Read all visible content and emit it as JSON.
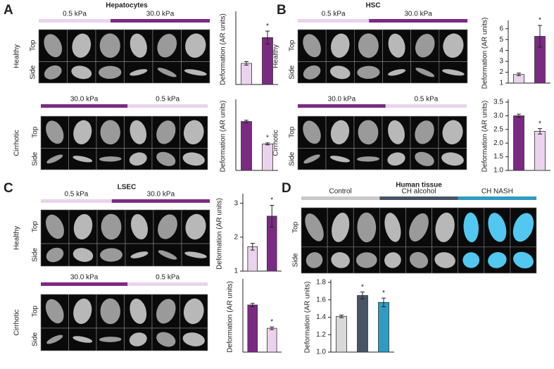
{
  "panels": [
    {
      "letter": "A",
      "title": "Hepatocytes",
      "conditions": [
        {
          "name": "Healthy",
          "groups": [
            {
              "label": "0.5 kPa",
              "color": "#ead3ec"
            },
            {
              "label": "30.0 kPa",
              "color": "#7b2a83"
            }
          ],
          "rows": [
            "Top",
            "Side"
          ]
        },
        {
          "name": "Cirrhotic",
          "groups": [
            {
              "label": "30.0 kPa",
              "color": "#7b2a83"
            },
            {
              "label": "0.5 kPa",
              "color": "#ead3ec"
            }
          ],
          "rows": [
            "Top",
            "Side"
          ]
        }
      ]
    },
    {
      "letter": "B",
      "title": "HSC",
      "conditions": [
        {
          "name": "Healthy",
          "groups": [
            {
              "label": "0.5 kPa",
              "color": "#ead3ec"
            },
            {
              "label": "30.0 kPa",
              "color": "#7b2a83"
            }
          ],
          "rows": [
            "Top",
            "Side"
          ]
        },
        {
          "name": "Cirrhotic",
          "groups": [
            {
              "label": "30.0 kPa",
              "color": "#7b2a83"
            },
            {
              "label": "0.5 kPa",
              "color": "#ead3ec"
            }
          ],
          "rows": [
            "Top",
            "Side"
          ]
        }
      ]
    },
    {
      "letter": "C",
      "title": "LSEC",
      "conditions": [
        {
          "name": "Healthy",
          "groups": [
            {
              "label": "0.5 kPa",
              "color": "#ead3ec"
            },
            {
              "label": "30.0 kPa",
              "color": "#7b2a83"
            }
          ],
          "rows": [
            "Top",
            "Side"
          ]
        },
        {
          "name": "Cirrhotic",
          "groups": [
            {
              "label": "30.0 kPa",
              "color": "#7b2a83"
            },
            {
              "label": "0.5 kPa",
              "color": "#ead3ec"
            }
          ],
          "rows": [
            "Top",
            "Side"
          ]
        }
      ]
    },
    {
      "letter": "D",
      "title": "Human tissue",
      "conditions": [
        {
          "groups": [
            {
              "label": "Control",
              "color": "#c8c8c8"
            },
            {
              "label": "CH alcohol",
              "color": "#475467"
            },
            {
              "label": "CH NASH",
              "color": "#2e9cc2"
            }
          ],
          "rows": [
            "Top",
            "Side"
          ]
        }
      ]
    }
  ],
  "chart_data": [
    {
      "type": "bar",
      "ylabel": "Deformation (AR units)",
      "categories": [
        null,
        null
      ],
      "values": [
        1.8,
        4.0
      ],
      "errors": [
        0.15,
        0.55
      ],
      "annotations": [
        null,
        "*"
      ],
      "colors": [
        "#ead3ec",
        "#7b2a83"
      ],
      "ylim": [
        0,
        6
      ]
    },
    {
      "type": "bar",
      "ylabel": "Deformation (AR units)",
      "categories": [
        null,
        null
      ],
      "values": [
        4.8,
        2.6
      ],
      "errors": [
        0.12,
        0.1
      ],
      "annotations": [
        null,
        "*"
      ],
      "colors": [
        "#7b2a83",
        "#ead3ec"
      ],
      "ylim": [
        0,
        6.7
      ]
    },
    {
      "type": "bar",
      "ylabel": "Deformation (AR units)",
      "categories": [
        null,
        null
      ],
      "values": [
        1.8,
        5.3
      ],
      "errors": [
        0.12,
        1.0
      ],
      "annotations": [
        null,
        "*"
      ],
      "colors": [
        "#ead3ec",
        "#7b2a83"
      ],
      "ylim": [
        1,
        6.5
      ],
      "yticks": [
        1,
        2,
        3,
        4,
        5,
        6
      ]
    },
    {
      "type": "bar",
      "ylabel": "Deformation (AR units)",
      "categories": [
        null,
        null
      ],
      "values": [
        3.0,
        2.43
      ],
      "errors": [
        0.06,
        0.1
      ],
      "annotations": [
        null,
        "*"
      ],
      "colors": [
        "#7b2a83",
        "#ead3ec"
      ],
      "ylim": [
        1,
        3.5
      ],
      "yticks": [
        {
          "value": 1,
          "label": "1.0"
        },
        1.5,
        {
          "value": 2,
          "label": "2.0"
        },
        2.5,
        {
          "value": 3,
          "label": "3.0"
        },
        3.5
      ]
    },
    {
      "type": "bar",
      "ylabel": "Deformation (AR units)",
      "categories": [
        null,
        null
      ],
      "values": [
        1.72,
        2.62
      ],
      "errors": [
        0.1,
        0.32
      ],
      "annotations": [
        null,
        "*"
      ],
      "colors": [
        "#ead3ec",
        "#7b2a83"
      ],
      "ylim": [
        1,
        3.2
      ],
      "yticks": [
        1,
        2,
        3
      ]
    },
    {
      "type": "bar",
      "ylabel": "Deformation (AR units)",
      "categories": [
        null,
        null
      ],
      "values": [
        4.35,
        2.2
      ],
      "errors": [
        0.15,
        0.12
      ],
      "annotations": [
        null,
        "*"
      ],
      "colors": [
        "#7b2a83",
        "#ead3ec"
      ],
      "ylim": [
        0,
        6.5
      ]
    },
    {
      "type": "bar",
      "ylabel": "Deformation (AR units)",
      "categories": [
        null,
        null,
        null
      ],
      "values": [
        1.41,
        1.65,
        1.57
      ],
      "errors": [
        0.015,
        0.04,
        0.05
      ],
      "annotations": [
        null,
        "*",
        "*"
      ],
      "colors": [
        "#d9d9d9",
        "#475467",
        "#2e9cc2"
      ],
      "ylim": [
        1.0,
        1.8
      ],
      "yticks": [
        {
          "value": 1,
          "label": "1.0"
        },
        1.2,
        1.4,
        1.6,
        1.8
      ]
    }
  ]
}
